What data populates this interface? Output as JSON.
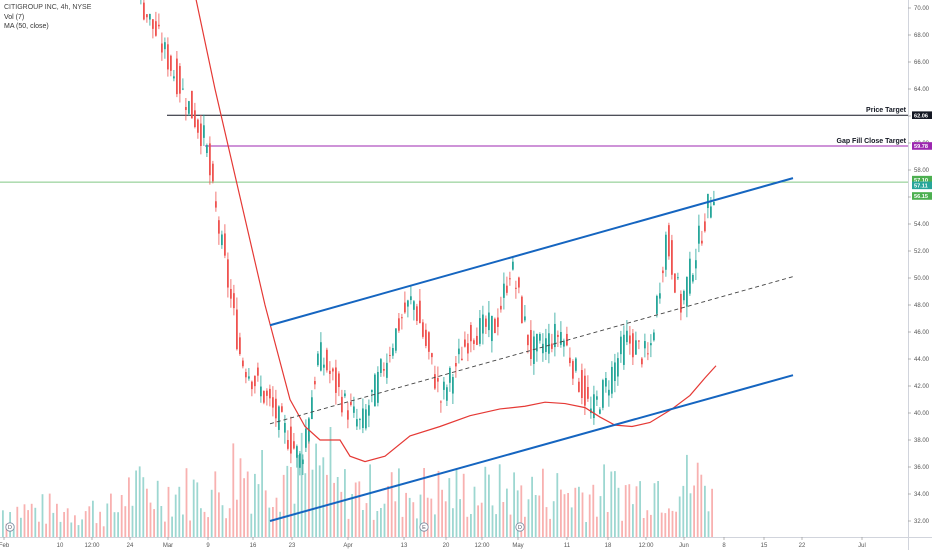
{
  "legend": {
    "symbol": "CITIGROUP INC, 4h, NYSE",
    "volume": "Vol (7)",
    "ma": "MA (50, close)"
  },
  "price_axis": {
    "ticks": [
      "70.00",
      "68.00",
      "66.00",
      "64.00",
      "62.00",
      "60.00",
      "58.00",
      "56.00",
      "54.00",
      "52.00",
      "50.00",
      "48.00",
      "46.00",
      "44.00",
      "42.00",
      "40.00",
      "38.00",
      "36.00",
      "34.00",
      "32.00"
    ],
    "tags": [
      {
        "label": "62.06",
        "color": "#131722"
      },
      {
        "label": "59.78",
        "color": "#9c27b0"
      },
      {
        "label": "57.10",
        "color": "#4caf50"
      },
      {
        "label": "57.11",
        "color": "#26a69a"
      },
      {
        "label": "56.15",
        "color": "#4caf50"
      }
    ]
  },
  "time_axis": {
    "ticks": [
      "Feb",
      "10",
      "12:00",
      "24",
      "Mar",
      "9",
      "16",
      "23",
      "Apr",
      "13",
      "20",
      "12:00",
      "May",
      "11",
      "18",
      "12:00",
      "Jun",
      "8",
      "15",
      "22",
      "Jul"
    ]
  },
  "annotations": {
    "price_target": "Price Target",
    "gap_fill": "Gap Fill Close Target"
  },
  "event_markers": [
    "D",
    "E",
    "D"
  ],
  "colors": {
    "up": "#26a69a",
    "down": "#ef5350",
    "channel": "#1565c0",
    "ma": "#e53935",
    "price_target_line": "#131722",
    "gap_fill_line": "#9c27b0",
    "current_line": "#4caf50"
  },
  "chart_data": {
    "type": "candlestick",
    "symbol": "CITIGROUP INC",
    "interval": "4h",
    "exchange": "NYSE",
    "y_range": [
      31,
      71
    ],
    "indicators": [
      "Vol (7)",
      "MA (50, close)"
    ],
    "horizontal_levels": [
      {
        "label": "Price Target",
        "value": 62.06
      },
      {
        "label": "Gap Fill Close Target",
        "value": 59.78
      },
      {
        "label": "",
        "value": 57.1
      }
    ],
    "channel_lines": [
      {
        "from": [
          "Mar 16",
          46.5
        ],
        "to": [
          "Jun 22",
          57.4
        ]
      },
      {
        "from": [
          "Mar 16",
          39.2
        ],
        "to": [
          "Jun 22",
          50.1
        ]
      },
      {
        "from": [
          "Mar 16",
          32.0
        ],
        "to": [
          "Jun 22",
          42.8
        ]
      }
    ],
    "price_path": [
      {
        "x": "Feb 24",
        "y": 70.5
      },
      {
        "x": "Mar 2",
        "y": 66.5
      },
      {
        "x": "Mar 9",
        "y": 60.0
      },
      {
        "x": "Mar 9",
        "y": 57.0
      },
      {
        "x": "Mar 16",
        "y": 44.0
      },
      {
        "x": "Mar 23",
        "y": 36.5
      },
      {
        "x": "Mar 30",
        "y": 44.5
      },
      {
        "x": "Apr 6",
        "y": 39.5
      },
      {
        "x": "Apr 13",
        "y": 48.5
      },
      {
        "x": "Apr 20",
        "y": 41.0
      },
      {
        "x": "Apr 27",
        "y": 51.0
      },
      {
        "x": "May 4",
        "y": 44.5
      },
      {
        "x": "May 11",
        "y": 46.0
      },
      {
        "x": "May 18",
        "y": 40.0
      },
      {
        "x": "May 25",
        "y": 45.5
      },
      {
        "x": "Jun 1",
        "y": 53.0
      },
      {
        "x": "Jun 4",
        "y": 57.1
      }
    ]
  }
}
